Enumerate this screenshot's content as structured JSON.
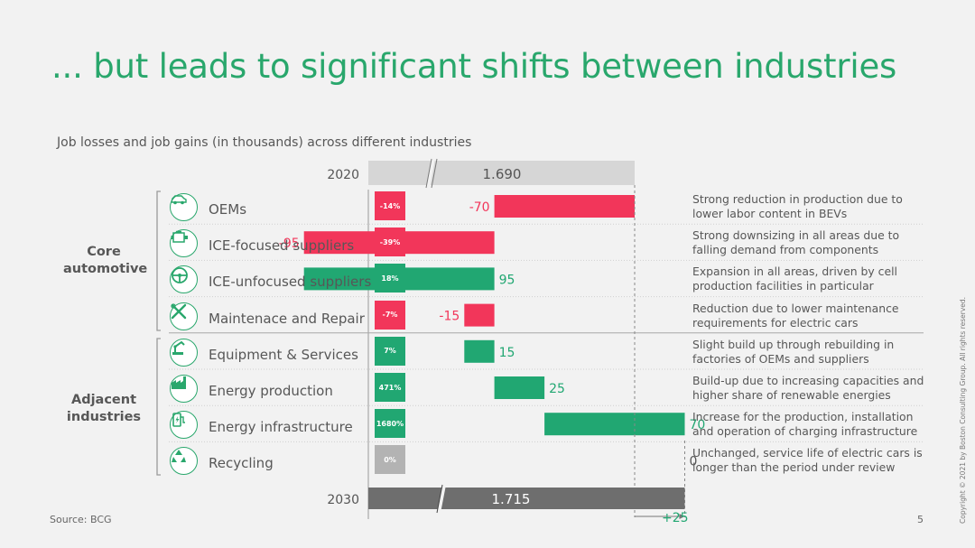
{
  "title": "... but leads to significant shifts between industries",
  "subtitle": "Job losses and job gains (in thousands) across different industries",
  "source": "Source: BCG",
  "page_number": "5",
  "copyright": "Copyright © 2021 by Boston Consulting Group. All rights reserved.",
  "groups": [
    {
      "label_line1": "Core",
      "label_line2": "automotive"
    },
    {
      "label_line1": "Adjacent",
      "label_line2": "industries"
    }
  ],
  "rows": [
    {
      "label": "OEMs",
      "icon": "car-icon",
      "pct": "-14%",
      "value_label": "-70",
      "description_line1": "Strong reduction in production due to",
      "description_line2": "lower labor content in BEVs"
    },
    {
      "label": "ICE-focused suppliers",
      "icon": "engine-icon",
      "pct": "-39%",
      "value_label": "-95",
      "description_line1": "Strong downsizing in all areas due to",
      "description_line2": "falling demand from components"
    },
    {
      "label": "ICE-unfocused suppliers",
      "icon": "steering-wheel-icon",
      "pct": "18%",
      "value_label": "95",
      "description_line1": "Expansion in all areas, driven by cell",
      "description_line2": "production facilities in particular"
    },
    {
      "label": "Maintenace and Repair",
      "icon": "tools-icon",
      "pct": "-7%",
      "value_label": "-15",
      "description_line1": "Reduction due to lower maintenance",
      "description_line2": "requirements for electric cars"
    },
    {
      "label": "Equipment & Services",
      "icon": "robot-arm-icon",
      "pct": "7%",
      "value_label": "15",
      "description_line1": "Slight build up through rebuilding in",
      "description_line2": "factories of OEMs and suppliers"
    },
    {
      "label": "Energy production",
      "icon": "factory-icon",
      "pct": "471%",
      "value_label": "25",
      "description_line1": "Build-up due to increasing capacities and",
      "description_line2": "higher share of renewable energies"
    },
    {
      "label": "Energy infrastructure",
      "icon": "charging-station-icon",
      "pct": "1680%",
      "value_label": "70",
      "description_line1": "Increase for the production, installation",
      "description_line2": "and operation of charging infrastructure"
    },
    {
      "label": "Recycling",
      "icon": "recycle-icon",
      "pct": "0%",
      "value_label": "0",
      "description_line1": "Unchanged, service life of electric cars is",
      "description_line2": "longer than the period under review"
    }
  ],
  "chart_data": {
    "type": "waterfall",
    "start": {
      "label": "2020",
      "value": 1690,
      "value_label": "1.690"
    },
    "end": {
      "label": "2030",
      "value": 1715,
      "value_label": "1.715"
    },
    "net_change_label": "+25",
    "categories": [
      "OEMs",
      "ICE-focused suppliers",
      "ICE-unfocused suppliers",
      "Maintenace and Repair",
      "Equipment & Services",
      "Energy production",
      "Energy infrastructure",
      "Recycling"
    ],
    "values": [
      -70,
      -95,
      95,
      -15,
      15,
      25,
      70,
      0
    ],
    "unit": "thousands"
  },
  "colors": {
    "title": "#29a76c",
    "gain": "#21a772",
    "loss": "#f2365a",
    "neutral": "#b3b3b3",
    "start_bar": "#d6d6d6",
    "end_bar": "#6e6e6e"
  }
}
